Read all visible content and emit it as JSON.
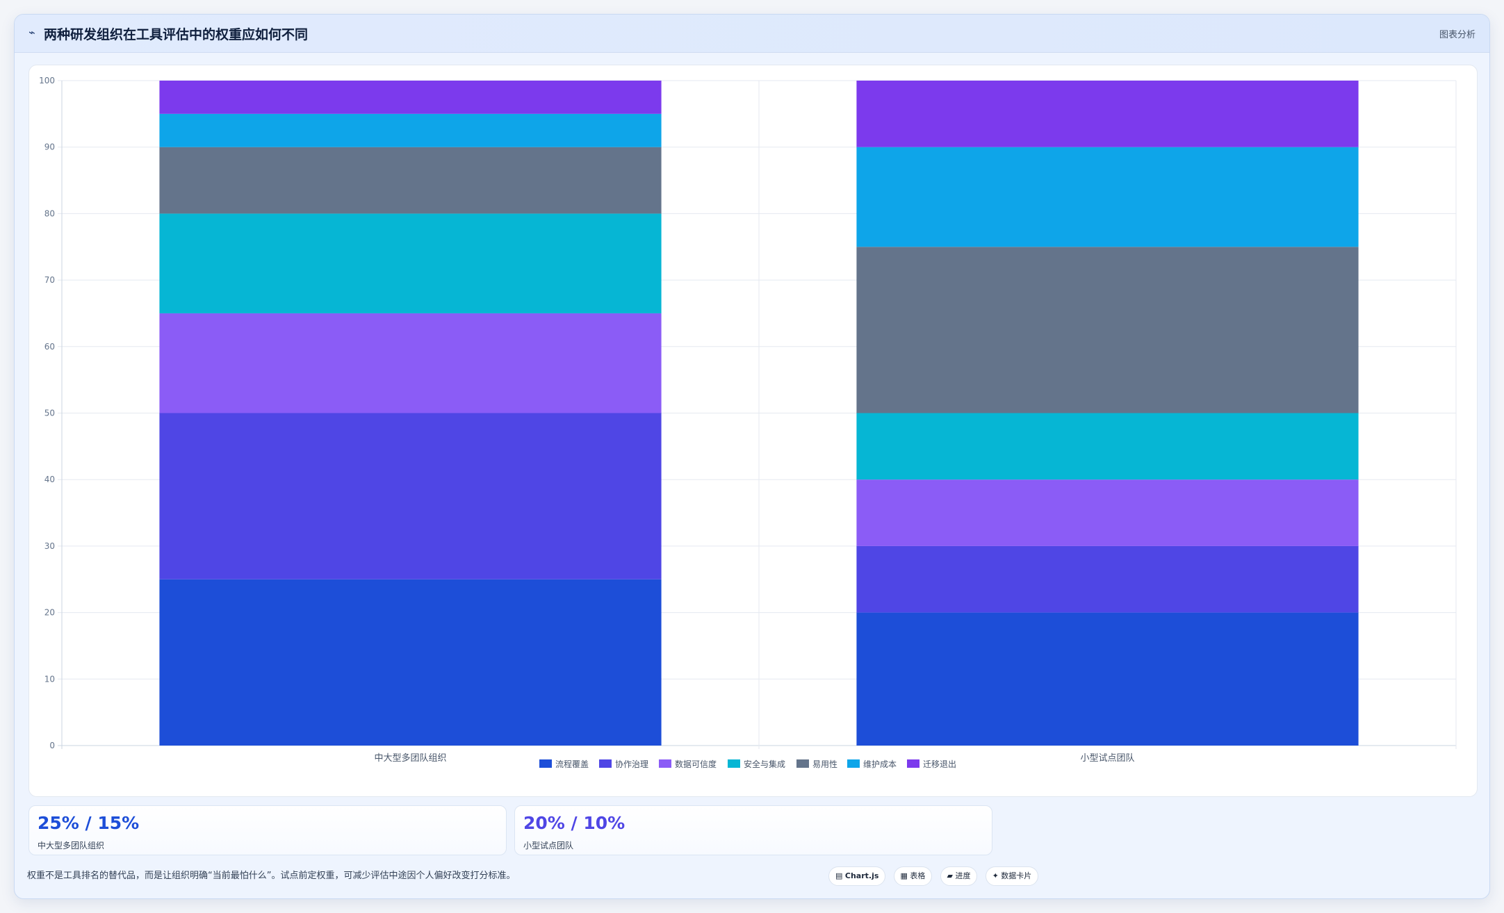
{
  "header": {
    "icon": "chart-line-icon",
    "icon_glyph": "⌁",
    "title": "两种研发组织在工具评估中的权重应如何不同",
    "badge": "图表分析"
  },
  "chart_data": {
    "type": "bar",
    "stacked": true,
    "categories": [
      "中大型多团队组织",
      "小型试点团队"
    ],
    "series": [
      {
        "name": "流程覆盖",
        "color": "#1d4ed8",
        "values": [
          25,
          20
        ]
      },
      {
        "name": "协作治理",
        "color": "#4f46e5",
        "values": [
          25,
          10
        ]
      },
      {
        "name": "数据可信度",
        "color": "#8b5cf6",
        "values": [
          15,
          10
        ]
      },
      {
        "name": "安全与集成",
        "color": "#06b6d4",
        "values": [
          15,
          10
        ]
      },
      {
        "name": "易用性",
        "color": "#64748b",
        "values": [
          10,
          25
        ]
      },
      {
        "name": "维护成本",
        "color": "#0ea5e9",
        "values": [
          5,
          15
        ]
      },
      {
        "name": "迁移退出",
        "color": "#7c3aed",
        "values": [
          5,
          10
        ]
      }
    ],
    "ylim": [
      0,
      100
    ],
    "yticks": [
      "0",
      "10",
      "20",
      "30",
      "40",
      "50",
      "60",
      "70",
      "80",
      "90",
      "100"
    ],
    "grid": true,
    "legend_position": "bottom"
  },
  "stats": [
    {
      "value": "25% / 15%",
      "label": "中大型多团队组织",
      "color": "#1d4ed8"
    },
    {
      "value": "20% / 10%",
      "label": "小型试点团队",
      "color": "#4f46e5"
    }
  ],
  "note": "权重不是工具排名的替代品，而是让组织明确“当前最怕什么”。试点前定权重，可减少评估中途因个人偏好改变打分标准。",
  "tags": [
    {
      "icon": "▤",
      "label": "Chart.js"
    },
    {
      "icon": "▦",
      "label": "表格"
    },
    {
      "icon": "▰",
      "label": "进度"
    },
    {
      "icon": "✦",
      "label": "数据卡片"
    }
  ]
}
